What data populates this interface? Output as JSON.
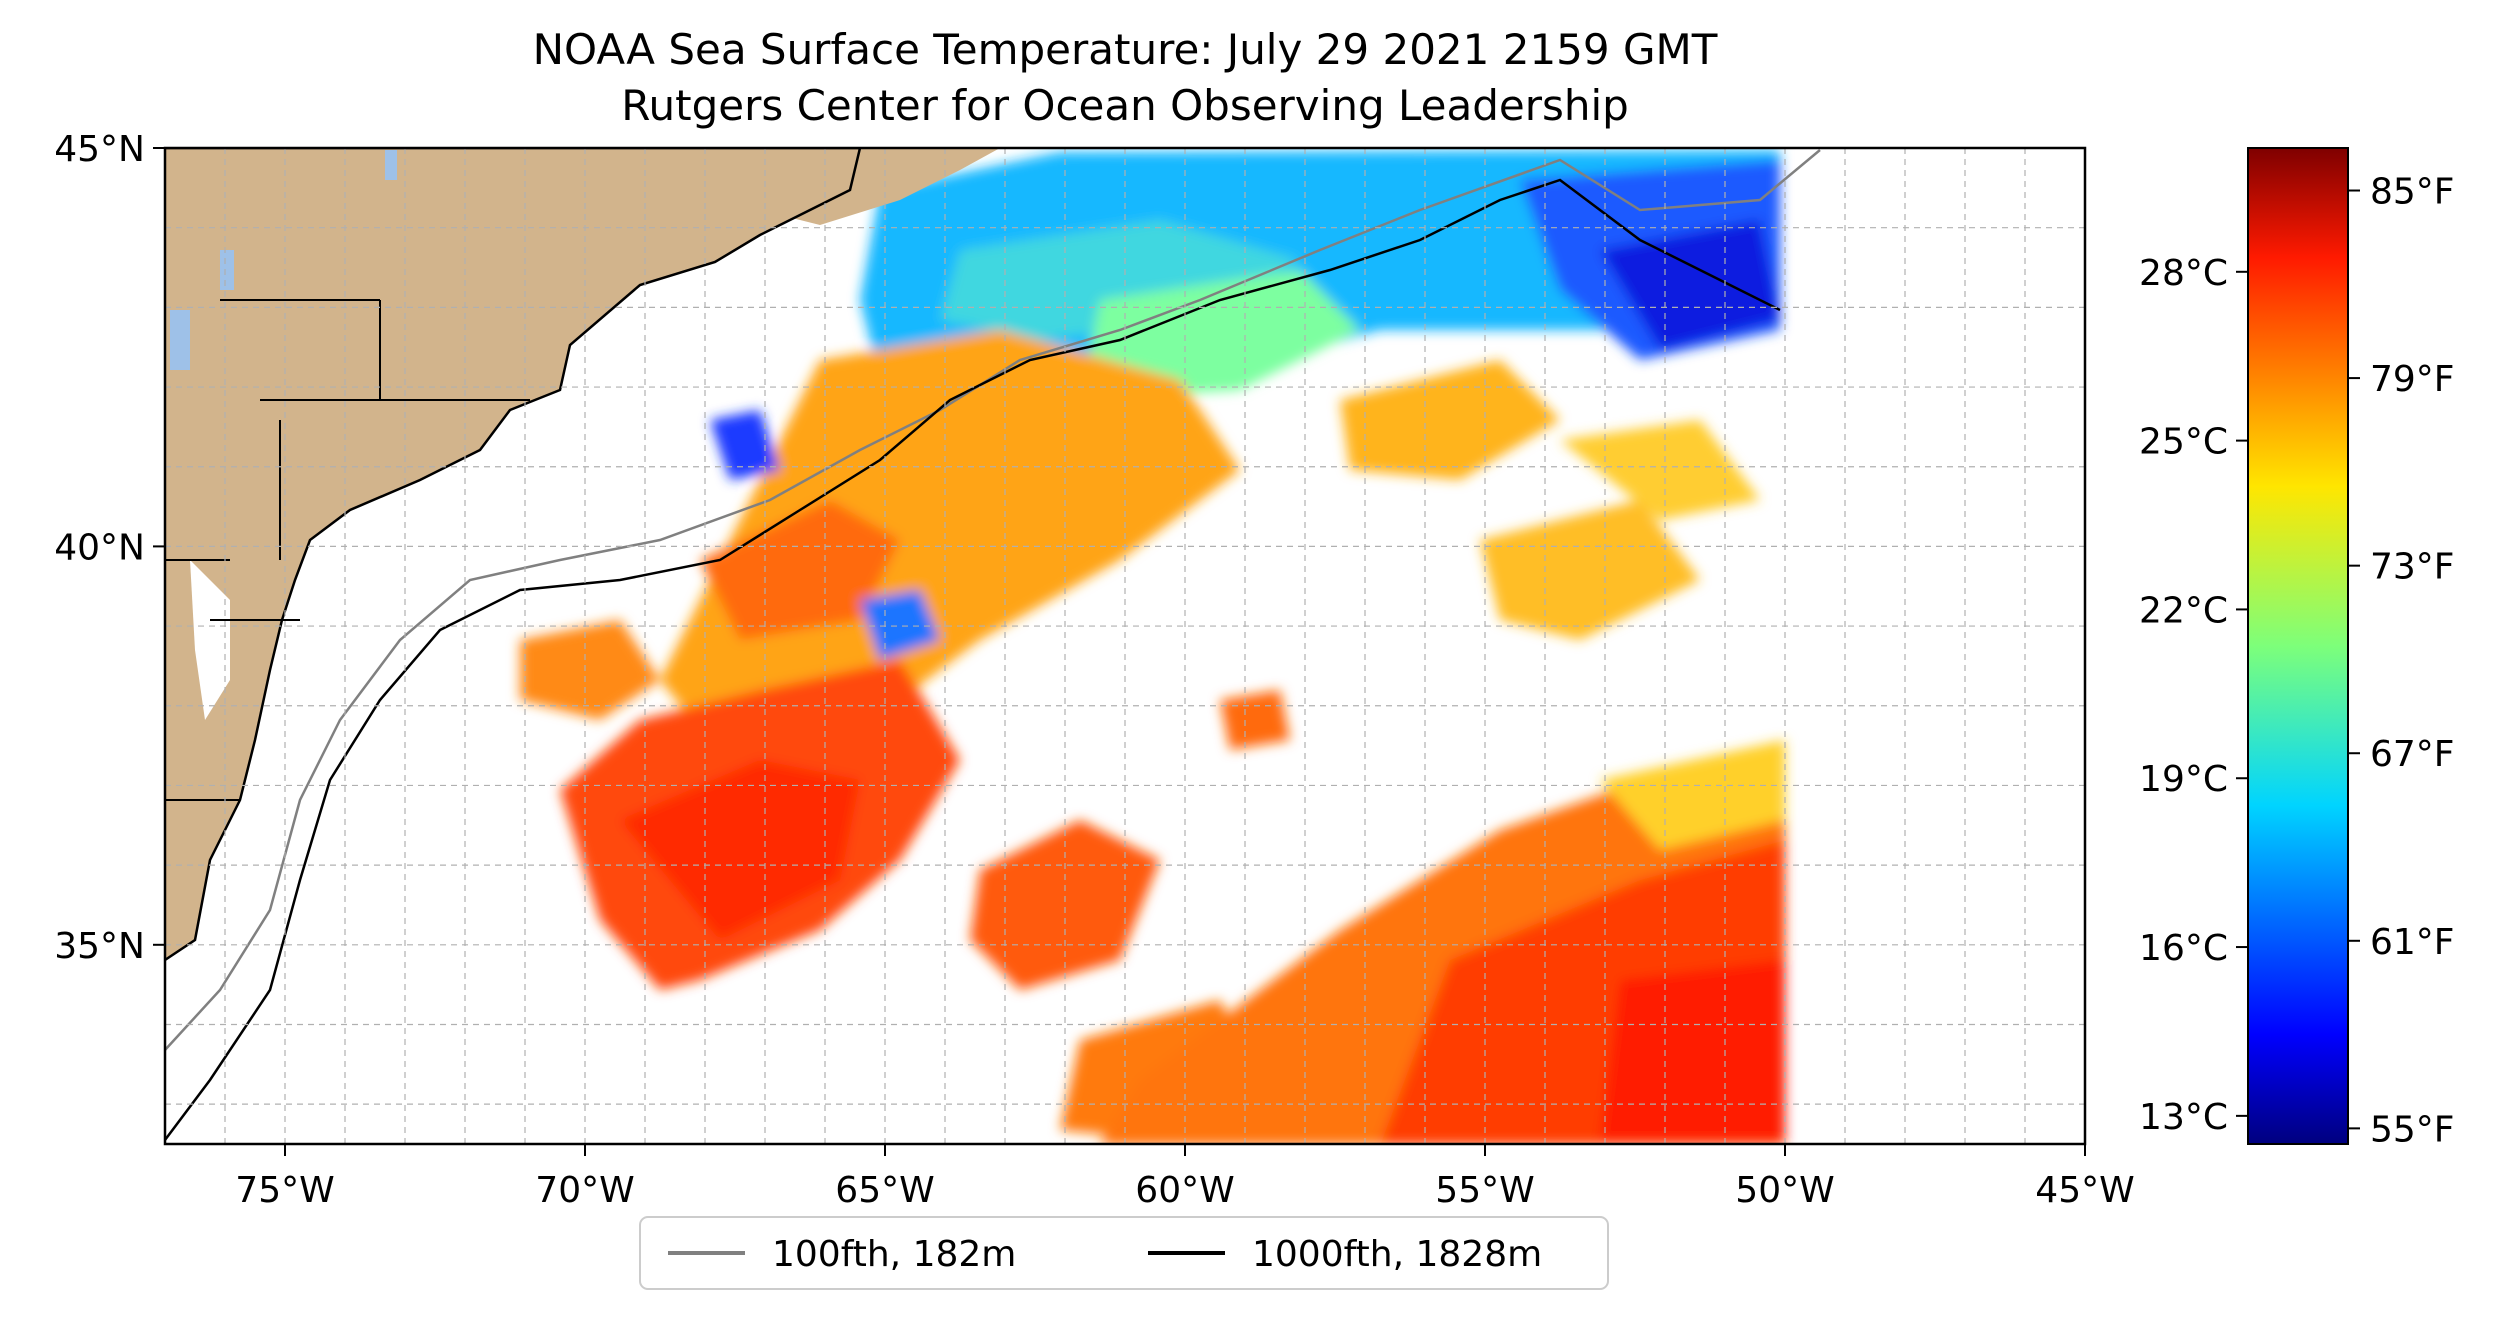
{
  "title": {
    "line1": "NOAA Sea Surface Temperature: July 29 2021 2159 GMT",
    "line2": "Rutgers Center for Ocean Observing Leadership"
  },
  "map": {
    "lon_range": [
      -77,
      -45
    ],
    "lat_range": [
      32.5,
      45
    ],
    "lon_ticks": [
      {
        "lon": -75,
        "label": "75°W"
      },
      {
        "lon": -70,
        "label": "70°W"
      },
      {
        "lon": -65,
        "label": "65°W"
      },
      {
        "lon": -60,
        "label": "60°W"
      },
      {
        "lon": -55,
        "label": "55°W"
      },
      {
        "lon": -50,
        "label": "50°W"
      },
      {
        "lon": -45,
        "label": "45°W"
      }
    ],
    "lat_ticks": [
      {
        "lat": 45,
        "label": "45°N"
      },
      {
        "lat": 40,
        "label": "40°N"
      },
      {
        "lat": 35,
        "label": "35°N"
      }
    ],
    "grid": true,
    "land_color": "#d2b48c",
    "lake_color": "#9ec1e8"
  },
  "legend": {
    "placement": "bottom-center",
    "items": [
      {
        "label": "100fth, 182m",
        "color": "#808080"
      },
      {
        "label": "1000fth, 1828m",
        "color": "#000000"
      }
    ]
  },
  "colorbar": {
    "colormap": "jet",
    "celsius_ticks": [
      {
        "value": 28,
        "label": "28°C"
      },
      {
        "value": 25,
        "label": "25°C"
      },
      {
        "value": 22,
        "label": "22°C"
      },
      {
        "value": 19,
        "label": "19°C"
      },
      {
        "value": 16,
        "label": "16°C"
      },
      {
        "value": 13,
        "label": "13°C"
      }
    ],
    "fahrenheit_ticks": [
      {
        "value": 85,
        "label": "85°F"
      },
      {
        "value": 79,
        "label": "79°F"
      },
      {
        "value": 73,
        "label": "73°F"
      },
      {
        "value": 67,
        "label": "67°F"
      },
      {
        "value": 61,
        "label": "61°F"
      },
      {
        "value": 55,
        "label": "55°F"
      }
    ]
  }
}
